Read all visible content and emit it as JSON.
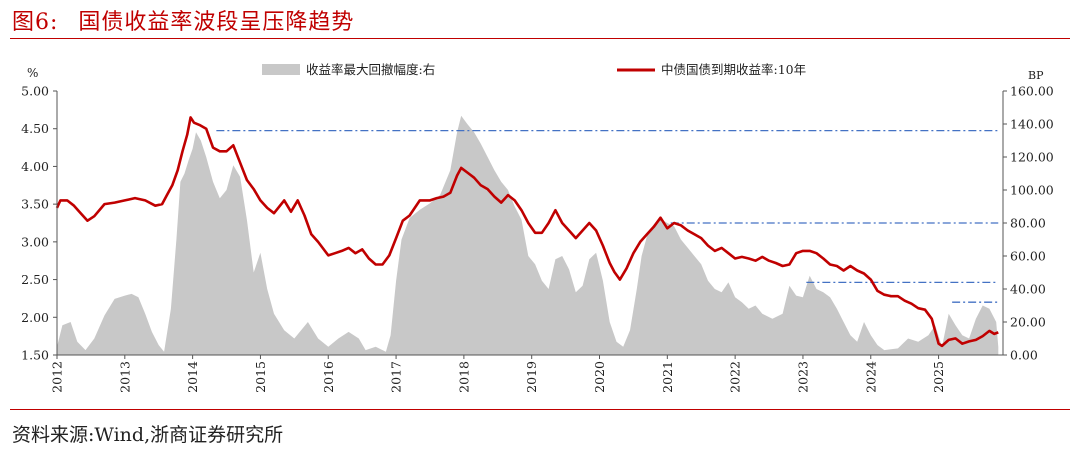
{
  "header": {
    "figure_label": "图6:",
    "figure_title": "国债收益率波段呈压降趋势"
  },
  "footer": {
    "source": "资料来源:Wind,浙商证券研究所"
  },
  "chart_data": {
    "type": "area+line",
    "left_axis": {
      "unit": "%",
      "min": 1.5,
      "max": 5.0,
      "ticks": [
        "1.50",
        "2.00",
        "2.50",
        "3.00",
        "3.50",
        "4.00",
        "4.50",
        "5.00"
      ]
    },
    "right_axis": {
      "unit": "BP",
      "min": 0,
      "max": 160,
      "ticks": [
        "0.00",
        "20.00",
        "40.00",
        "60.00",
        "80.00",
        "100.00",
        "120.00",
        "140.00",
        "160.00"
      ]
    },
    "x_ticks": [
      "2012",
      "2013",
      "2014",
      "2015",
      "2016",
      "2017",
      "2018",
      "2019",
      "2020",
      "2021",
      "2022",
      "2023",
      "2024",
      "2025"
    ],
    "grid": false,
    "legend_position": "top",
    "series": [
      {
        "name": "收益率最大回撤幅度:右",
        "kind": "area",
        "axis": "right",
        "color": "#c8c8c8",
        "points": [
          [
            2012.0,
            5
          ],
          [
            2012.08,
            18
          ],
          [
            2012.2,
            20
          ],
          [
            2012.3,
            8
          ],
          [
            2012.42,
            3
          ],
          [
            2012.55,
            10
          ],
          [
            2012.7,
            24
          ],
          [
            2012.85,
            34
          ],
          [
            2013.0,
            36
          ],
          [
            2013.1,
            37
          ],
          [
            2013.2,
            35
          ],
          [
            2013.3,
            25
          ],
          [
            2013.4,
            14
          ],
          [
            2013.5,
            6
          ],
          [
            2013.58,
            2
          ],
          [
            2013.68,
            28
          ],
          [
            2013.76,
            70
          ],
          [
            2013.82,
            105
          ],
          [
            2013.88,
            110
          ],
          [
            2013.94,
            118
          ],
          [
            2014.0,
            125
          ],
          [
            2014.05,
            135
          ],
          [
            2014.12,
            130
          ],
          [
            2014.2,
            120
          ],
          [
            2014.3,
            105
          ],
          [
            2014.4,
            95
          ],
          [
            2014.5,
            100
          ],
          [
            2014.6,
            115
          ],
          [
            2014.7,
            108
          ],
          [
            2014.8,
            82
          ],
          [
            2014.9,
            50
          ],
          [
            2015.0,
            62
          ],
          [
            2015.1,
            40
          ],
          [
            2015.2,
            25
          ],
          [
            2015.35,
            15
          ],
          [
            2015.5,
            10
          ],
          [
            2015.7,
            20
          ],
          [
            2015.85,
            10
          ],
          [
            2016.0,
            5
          ],
          [
            2016.15,
            10
          ],
          [
            2016.3,
            14
          ],
          [
            2016.45,
            10
          ],
          [
            2016.55,
            3
          ],
          [
            2016.7,
            5
          ],
          [
            2016.85,
            2
          ],
          [
            2016.92,
            12
          ],
          [
            2017.0,
            45
          ],
          [
            2017.08,
            70
          ],
          [
            2017.2,
            83
          ],
          [
            2017.35,
            88
          ],
          [
            2017.5,
            92
          ],
          [
            2017.65,
            97
          ],
          [
            2017.8,
            112
          ],
          [
            2017.9,
            135
          ],
          [
            2017.96,
            145
          ],
          [
            2018.05,
            140
          ],
          [
            2018.15,
            135
          ],
          [
            2018.25,
            128
          ],
          [
            2018.35,
            120
          ],
          [
            2018.45,
            112
          ],
          [
            2018.55,
            105
          ],
          [
            2018.65,
            100
          ],
          [
            2018.75,
            90
          ],
          [
            2018.85,
            82
          ],
          [
            2018.95,
            60
          ],
          [
            2019.05,
            55
          ],
          [
            2019.15,
            45
          ],
          [
            2019.25,
            40
          ],
          [
            2019.35,
            58
          ],
          [
            2019.45,
            60
          ],
          [
            2019.55,
            52
          ],
          [
            2019.65,
            38
          ],
          [
            2019.75,
            42
          ],
          [
            2019.85,
            58
          ],
          [
            2019.95,
            62
          ],
          [
            2020.05,
            45
          ],
          [
            2020.15,
            20
          ],
          [
            2020.25,
            8
          ],
          [
            2020.35,
            5
          ],
          [
            2020.45,
            15
          ],
          [
            2020.55,
            40
          ],
          [
            2020.62,
            60
          ],
          [
            2020.72,
            75
          ],
          [
            2020.82,
            80
          ],
          [
            2020.92,
            82
          ],
          [
            2021.0,
            80
          ],
          [
            2021.1,
            78
          ],
          [
            2021.2,
            70
          ],
          [
            2021.3,
            65
          ],
          [
            2021.4,
            60
          ],
          [
            2021.5,
            55
          ],
          [
            2021.6,
            45
          ],
          [
            2021.7,
            40
          ],
          [
            2021.8,
            38
          ],
          [
            2021.9,
            44
          ],
          [
            2022.0,
            35
          ],
          [
            2022.1,
            32
          ],
          [
            2022.2,
            28
          ],
          [
            2022.3,
            30
          ],
          [
            2022.4,
            25
          ],
          [
            2022.55,
            22
          ],
          [
            2022.7,
            25
          ],
          [
            2022.8,
            42
          ],
          [
            2022.9,
            36
          ],
          [
            2023.0,
            35
          ],
          [
            2023.1,
            48
          ],
          [
            2023.2,
            40
          ],
          [
            2023.3,
            38
          ],
          [
            2023.4,
            35
          ],
          [
            2023.5,
            28
          ],
          [
            2023.6,
            20
          ],
          [
            2023.7,
            12
          ],
          [
            2023.8,
            8
          ],
          [
            2023.9,
            20
          ],
          [
            2024.0,
            12
          ],
          [
            2024.1,
            6
          ],
          [
            2024.2,
            3
          ],
          [
            2024.4,
            4
          ],
          [
            2024.55,
            10
          ],
          [
            2024.7,
            8
          ],
          [
            2024.85,
            12
          ],
          [
            2024.95,
            18
          ],
          [
            2025.05,
            5
          ],
          [
            2025.15,
            25
          ],
          [
            2025.25,
            18
          ],
          [
            2025.35,
            12
          ],
          [
            2025.45,
            10
          ],
          [
            2025.55,
            22
          ],
          [
            2025.65,
            30
          ],
          [
            2025.75,
            28
          ],
          [
            2025.85,
            20
          ],
          [
            2025.88,
            5
          ]
        ]
      },
      {
        "name": "中债国债到期收益率:10年",
        "kind": "line",
        "axis": "left",
        "color": "#c00000",
        "points": [
          [
            2012.0,
            3.45
          ],
          [
            2012.05,
            3.55
          ],
          [
            2012.15,
            3.55
          ],
          [
            2012.25,
            3.48
          ],
          [
            2012.35,
            3.38
          ],
          [
            2012.45,
            3.28
          ],
          [
            2012.55,
            3.34
          ],
          [
            2012.7,
            3.5
          ],
          [
            2012.85,
            3.52
          ],
          [
            2013.0,
            3.55
          ],
          [
            2013.15,
            3.58
          ],
          [
            2013.3,
            3.55
          ],
          [
            2013.45,
            3.48
          ],
          [
            2013.55,
            3.5
          ],
          [
            2013.62,
            3.62
          ],
          [
            2013.7,
            3.75
          ],
          [
            2013.78,
            3.95
          ],
          [
            2013.85,
            4.2
          ],
          [
            2013.92,
            4.42
          ],
          [
            2013.97,
            4.65
          ],
          [
            2014.02,
            4.58
          ],
          [
            2014.1,
            4.55
          ],
          [
            2014.2,
            4.5
          ],
          [
            2014.3,
            4.25
          ],
          [
            2014.4,
            4.2
          ],
          [
            2014.5,
            4.2
          ],
          [
            2014.6,
            4.28
          ],
          [
            2014.7,
            4.05
          ],
          [
            2014.8,
            3.82
          ],
          [
            2014.9,
            3.7
          ],
          [
            2015.0,
            3.55
          ],
          [
            2015.1,
            3.45
          ],
          [
            2015.2,
            3.38
          ],
          [
            2015.35,
            3.55
          ],
          [
            2015.45,
            3.4
          ],
          [
            2015.55,
            3.55
          ],
          [
            2015.65,
            3.35
          ],
          [
            2015.75,
            3.1
          ],
          [
            2015.85,
            3.0
          ],
          [
            2015.95,
            2.88
          ],
          [
            2016.0,
            2.82
          ],
          [
            2016.1,
            2.85
          ],
          [
            2016.2,
            2.88
          ],
          [
            2016.3,
            2.92
          ],
          [
            2016.4,
            2.85
          ],
          [
            2016.5,
            2.9
          ],
          [
            2016.6,
            2.78
          ],
          [
            2016.7,
            2.7
          ],
          [
            2016.8,
            2.7
          ],
          [
            2016.9,
            2.82
          ],
          [
            2017.0,
            3.05
          ],
          [
            2017.1,
            3.28
          ],
          [
            2017.2,
            3.35
          ],
          [
            2017.35,
            3.55
          ],
          [
            2017.5,
            3.55
          ],
          [
            2017.6,
            3.58
          ],
          [
            2017.7,
            3.6
          ],
          [
            2017.8,
            3.65
          ],
          [
            2017.9,
            3.88
          ],
          [
            2017.96,
            3.98
          ],
          [
            2018.05,
            3.92
          ],
          [
            2018.15,
            3.85
          ],
          [
            2018.25,
            3.75
          ],
          [
            2018.35,
            3.7
          ],
          [
            2018.45,
            3.6
          ],
          [
            2018.55,
            3.52
          ],
          [
            2018.65,
            3.62
          ],
          [
            2018.75,
            3.55
          ],
          [
            2018.85,
            3.42
          ],
          [
            2018.95,
            3.25
          ],
          [
            2019.05,
            3.12
          ],
          [
            2019.15,
            3.12
          ],
          [
            2019.25,
            3.25
          ],
          [
            2019.35,
            3.42
          ],
          [
            2019.45,
            3.25
          ],
          [
            2019.55,
            3.15
          ],
          [
            2019.65,
            3.05
          ],
          [
            2019.75,
            3.15
          ],
          [
            2019.85,
            3.25
          ],
          [
            2019.95,
            3.15
          ],
          [
            2020.05,
            2.95
          ],
          [
            2020.15,
            2.72
          ],
          [
            2020.22,
            2.6
          ],
          [
            2020.3,
            2.5
          ],
          [
            2020.4,
            2.65
          ],
          [
            2020.5,
            2.85
          ],
          [
            2020.6,
            3.0
          ],
          [
            2020.7,
            3.1
          ],
          [
            2020.8,
            3.2
          ],
          [
            2020.9,
            3.32
          ],
          [
            2021.0,
            3.18
          ],
          [
            2021.1,
            3.25
          ],
          [
            2021.2,
            3.22
          ],
          [
            2021.3,
            3.15
          ],
          [
            2021.4,
            3.1
          ],
          [
            2021.5,
            3.05
          ],
          [
            2021.6,
            2.95
          ],
          [
            2021.7,
            2.88
          ],
          [
            2021.8,
            2.92
          ],
          [
            2021.9,
            2.85
          ],
          [
            2022.0,
            2.78
          ],
          [
            2022.1,
            2.8
          ],
          [
            2022.2,
            2.78
          ],
          [
            2022.3,
            2.75
          ],
          [
            2022.4,
            2.8
          ],
          [
            2022.5,
            2.75
          ],
          [
            2022.6,
            2.72
          ],
          [
            2022.7,
            2.68
          ],
          [
            2022.8,
            2.7
          ],
          [
            2022.9,
            2.85
          ],
          [
            2023.0,
            2.88
          ],
          [
            2023.1,
            2.88
          ],
          [
            2023.2,
            2.85
          ],
          [
            2023.3,
            2.78
          ],
          [
            2023.4,
            2.7
          ],
          [
            2023.5,
            2.68
          ],
          [
            2023.6,
            2.62
          ],
          [
            2023.7,
            2.68
          ],
          [
            2023.8,
            2.62
          ],
          [
            2023.9,
            2.58
          ],
          [
            2024.0,
            2.5
          ],
          [
            2024.1,
            2.35
          ],
          [
            2024.2,
            2.3
          ],
          [
            2024.3,
            2.28
          ],
          [
            2024.4,
            2.28
          ],
          [
            2024.5,
            2.22
          ],
          [
            2024.6,
            2.18
          ],
          [
            2024.7,
            2.12
          ],
          [
            2024.8,
            2.1
          ],
          [
            2024.9,
            1.98
          ],
          [
            2025.0,
            1.65
          ],
          [
            2025.05,
            1.62
          ],
          [
            2025.15,
            1.7
          ],
          [
            2025.25,
            1.72
          ],
          [
            2025.35,
            1.65
          ],
          [
            2025.45,
            1.68
          ],
          [
            2025.55,
            1.7
          ],
          [
            2025.65,
            1.75
          ],
          [
            2025.75,
            1.82
          ],
          [
            2025.82,
            1.78
          ],
          [
            2025.88,
            1.8
          ]
        ]
      }
    ],
    "reference_lines": [
      {
        "axis": "right",
        "value": 136,
        "x_start": 2014.35,
        "x_end": 2025.88,
        "color": "#4472c4",
        "style": "dash-dot"
      },
      {
        "axis": "right",
        "value": 80,
        "x_start": 2021.05,
        "x_end": 2025.88,
        "color": "#4472c4",
        "style": "dash-dot"
      },
      {
        "axis": "right",
        "value": 44,
        "x_start": 2023.05,
        "x_end": 2025.88,
        "color": "#4472c4",
        "style": "dash-dot"
      },
      {
        "axis": "right",
        "value": 32,
        "x_start": 2025.2,
        "x_end": 2025.88,
        "color": "#4472c4",
        "style": "dash-dot"
      }
    ]
  }
}
